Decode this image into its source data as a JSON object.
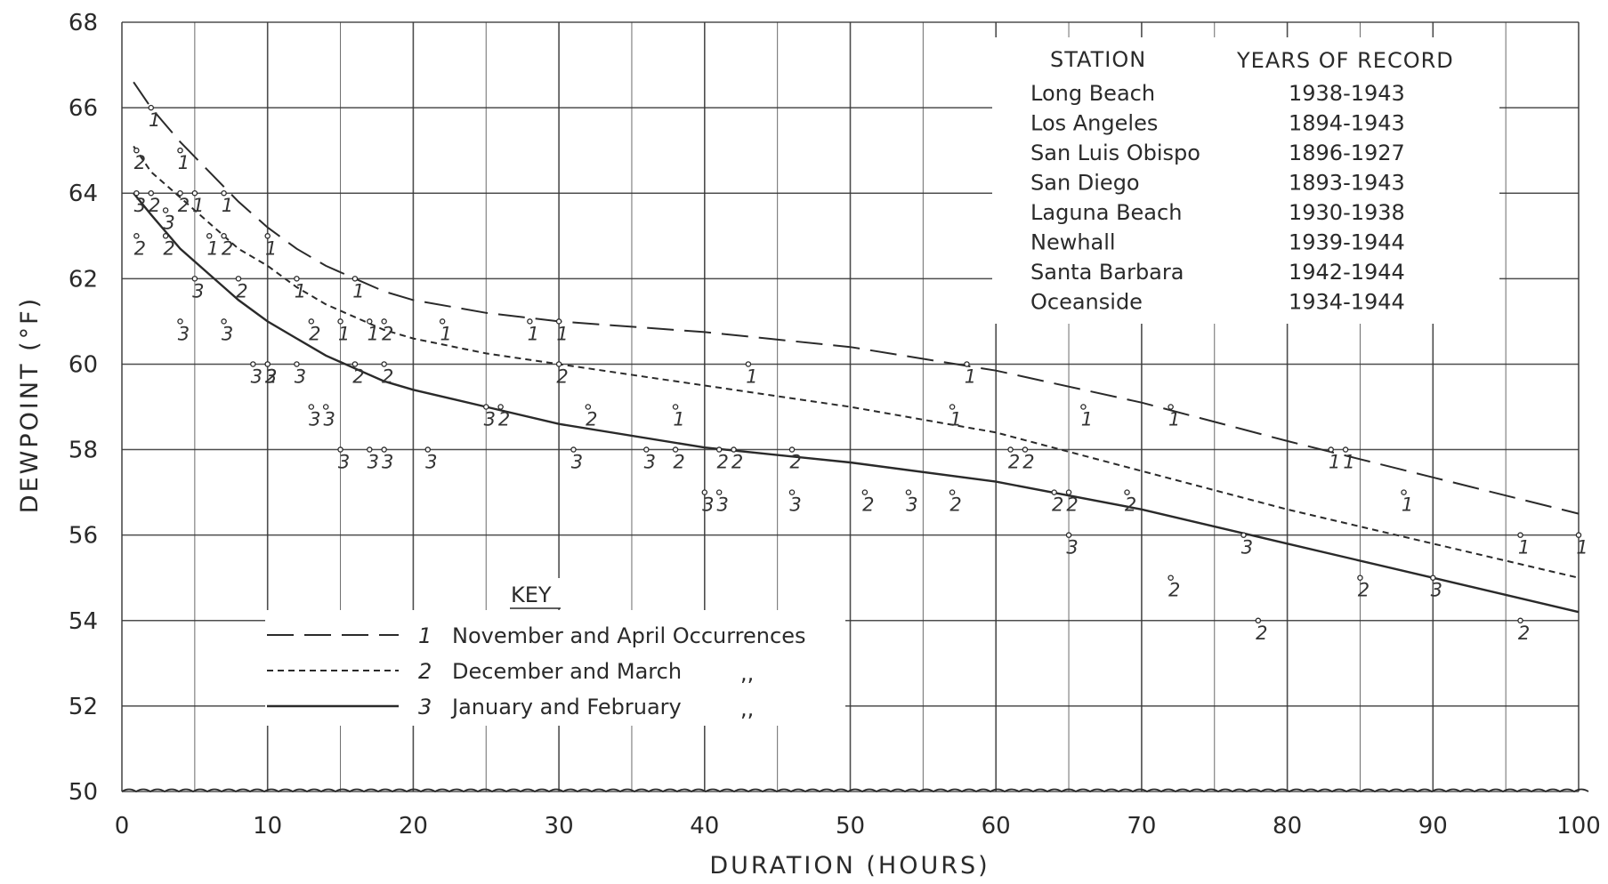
{
  "chart_data": {
    "type": "line",
    "xlabel": "DURATION (HOURS)",
    "ylabel": "DEWPOINT (°F)",
    "xlim": [
      0,
      100
    ],
    "ylim": [
      50,
      68
    ],
    "xticks": [
      "0",
      "10",
      "20",
      "30",
      "40",
      "50",
      "60",
      "70",
      "80",
      "90",
      "100"
    ],
    "yticks": [
      "50",
      "52",
      "54",
      "56",
      "58",
      "60",
      "62",
      "64",
      "66",
      "68"
    ],
    "grid": true,
    "series": [
      {
        "key_symbol": "1",
        "key_text": "November and April Occurrences",
        "dash": "long",
        "curve": [
          [
            0.8,
            66.6
          ],
          [
            2,
            66
          ],
          [
            4,
            65.2
          ],
          [
            6,
            64.5
          ],
          [
            8,
            63.8
          ],
          [
            10,
            63.2
          ],
          [
            12,
            62.7
          ],
          [
            14,
            62.3
          ],
          [
            16,
            62
          ],
          [
            18,
            61.7
          ],
          [
            20,
            61.5
          ],
          [
            25,
            61.2
          ],
          [
            30,
            61
          ],
          [
            40,
            60.75
          ],
          [
            50,
            60.4
          ],
          [
            60,
            59.85
          ],
          [
            70,
            59.1
          ],
          [
            80,
            58.2
          ],
          [
            90,
            57.35
          ],
          [
            100,
            56.5
          ]
        ],
        "points": [
          [
            2,
            66
          ],
          [
            4,
            65
          ],
          [
            5,
            64
          ],
          [
            7,
            64
          ],
          [
            6,
            63
          ],
          [
            10,
            63
          ],
          [
            12,
            62
          ],
          [
            16,
            62
          ],
          [
            15,
            61
          ],
          [
            17,
            61
          ],
          [
            22,
            61
          ],
          [
            28,
            61
          ],
          [
            30,
            61
          ],
          [
            43,
            60
          ],
          [
            58,
            60
          ],
          [
            38,
            59
          ],
          [
            57,
            59
          ],
          [
            66,
            59
          ],
          [
            72,
            59
          ],
          [
            83,
            58
          ],
          [
            84,
            58
          ],
          [
            88,
            57
          ],
          [
            96,
            56
          ],
          [
            100,
            56
          ]
        ]
      },
      {
        "key_symbol": "2",
        "key_text": "December and March",
        "key_ditto": ",,",
        "dash": "short",
        "curve": [
          [
            0.8,
            65.1
          ],
          [
            2,
            64.5
          ],
          [
            4,
            63.9
          ],
          [
            6,
            63.3
          ],
          [
            8,
            62.7
          ],
          [
            10,
            62.3
          ],
          [
            12,
            61.8
          ],
          [
            14,
            61.4
          ],
          [
            16,
            61.1
          ],
          [
            18,
            60.8
          ],
          [
            20,
            60.6
          ],
          [
            25,
            60.25
          ],
          [
            30,
            60
          ],
          [
            40,
            59.5
          ],
          [
            50,
            59
          ],
          [
            60,
            58.4
          ],
          [
            70,
            57.5
          ],
          [
            80,
            56.6
          ],
          [
            90,
            55.8
          ],
          [
            100,
            55
          ]
        ]
      },
      {
        "key_symbol": "3",
        "key_text": "January and February",
        "key_ditto": ",,",
        "dash": "solid",
        "curve": [
          [
            0.8,
            64
          ],
          [
            2,
            63.5
          ],
          [
            4,
            62.7
          ],
          [
            6,
            62.1
          ],
          [
            8,
            61.5
          ],
          [
            10,
            61
          ],
          [
            12,
            60.6
          ],
          [
            14,
            60.2
          ],
          [
            16,
            59.9
          ],
          [
            18,
            59.6
          ],
          [
            20,
            59.4
          ],
          [
            25,
            59
          ],
          [
            30,
            58.6
          ],
          [
            40,
            58.05
          ],
          [
            50,
            57.7
          ],
          [
            60,
            57.25
          ],
          [
            70,
            56.6
          ],
          [
            80,
            55.8
          ],
          [
            90,
            55
          ],
          [
            100,
            54.2
          ]
        ]
      }
    ],
    "points_2": [
      [
        1,
        65
      ],
      [
        2,
        64
      ],
      [
        4,
        64
      ],
      [
        3,
        63
      ],
      [
        1,
        63
      ],
      [
        7,
        63
      ],
      [
        8,
        62
      ],
      [
        10,
        60
      ],
      [
        13,
        61
      ],
      [
        18,
        61
      ],
      [
        16,
        60
      ],
      [
        18,
        60
      ],
      [
        26,
        59
      ],
      [
        30,
        60
      ],
      [
        32,
        59
      ],
      [
        38,
        58
      ],
      [
        41,
        58
      ],
      [
        42,
        58
      ],
      [
        46,
        58
      ],
      [
        51,
        57
      ],
      [
        57,
        57
      ],
      [
        61,
        58
      ],
      [
        62,
        58
      ],
      [
        64,
        57
      ],
      [
        65,
        57
      ],
      [
        69,
        57
      ],
      [
        72,
        55
      ],
      [
        78,
        54
      ],
      [
        85,
        55
      ],
      [
        96,
        54
      ]
    ],
    "points_3": [
      [
        1,
        64
      ],
      [
        3,
        63.6
      ],
      [
        5,
        62
      ],
      [
        4,
        61
      ],
      [
        7,
        61
      ],
      [
        9,
        60
      ],
      [
        10,
        60
      ],
      [
        12,
        60
      ],
      [
        13,
        59
      ],
      [
        14,
        59
      ],
      [
        15,
        58
      ],
      [
        17,
        58
      ],
      [
        18,
        58
      ],
      [
        21,
        58
      ],
      [
        25,
        59
      ],
      [
        31,
        58
      ],
      [
        36,
        58
      ],
      [
        40,
        57
      ],
      [
        41,
        57
      ],
      [
        46,
        57
      ],
      [
        54,
        57
      ],
      [
        65,
        56
      ],
      [
        77,
        56
      ],
      [
        90,
        55
      ]
    ],
    "point_labels": [
      "1",
      "2",
      "3"
    ],
    "table": {
      "header_station": "STATION",
      "header_years": "YEARS OF RECORD",
      "rows": [
        {
          "station": "Long Beach",
          "years": "1938-1943"
        },
        {
          "station": "Los Angeles",
          "years": "1894-1943"
        },
        {
          "station": "San Luis Obispo",
          "years": "1896-1927"
        },
        {
          "station": "San Diego",
          "years": "1893-1943"
        },
        {
          "station": "Laguna Beach",
          "years": "1930-1938"
        },
        {
          "station": "Newhall",
          "years": "1939-1944"
        },
        {
          "station": "Santa Barbara",
          "years": "1942-1944"
        },
        {
          "station": "Oceanside",
          "years": "1934-1944"
        }
      ]
    },
    "key_title": "KEY"
  },
  "colors": {
    "ink": "#2a2a2a",
    "grid": "#3a3a3a",
    "background": "#ffffff"
  }
}
